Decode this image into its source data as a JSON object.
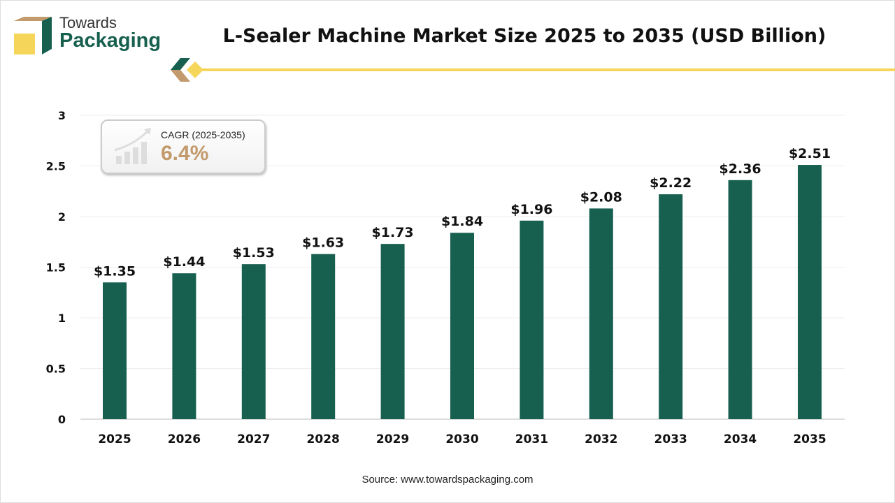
{
  "logo": {
    "line1": "Towards",
    "line2": "Packaging"
  },
  "source": "Source: www.towardspackaging.com",
  "cagr": {
    "label": "CAGR (2025-2035)",
    "value": "6.4%"
  },
  "colors": {
    "bar": "#17604f",
    "accent": "#f5d55a",
    "logo_tan": "#c39a6b",
    "cagr_value": "#c39a6b"
  },
  "chart_data": {
    "type": "bar",
    "title": "L-Sealer Machine Market Size 2025 to 2035 (USD Billion)",
    "categories": [
      "2025",
      "2026",
      "2027",
      "2028",
      "2029",
      "2030",
      "2031",
      "2032",
      "2033",
      "2034",
      "2035"
    ],
    "values": [
      1.35,
      1.44,
      1.53,
      1.63,
      1.73,
      1.84,
      1.96,
      2.08,
      2.22,
      2.36,
      2.51
    ],
    "data_labels": [
      "$1.35",
      "$1.44",
      "$1.53",
      "$1.63",
      "$1.73",
      "$1.84",
      "$1.96",
      "$2.08",
      "$2.22",
      "$2.36",
      "$2.51"
    ],
    "yticks": [
      "0",
      "0.5",
      "1",
      "1.5",
      "2",
      "2.5",
      "3"
    ],
    "ylim": [
      0,
      3
    ],
    "grid": true,
    "xlabel": "",
    "ylabel": ""
  }
}
